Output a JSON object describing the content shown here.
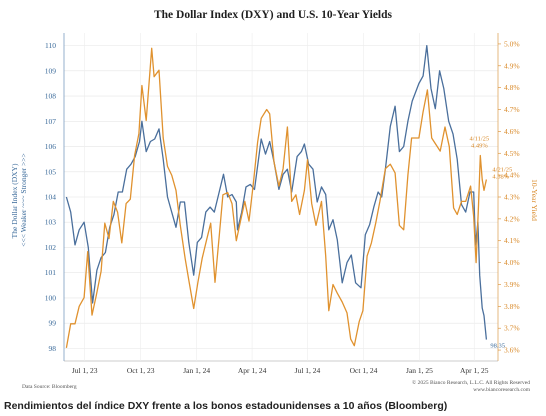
{
  "caption": "Rendimientos del índice DXY frente a los bonos estadounidenses a 10 años (Bloomberg)",
  "chart_data": {
    "type": "line",
    "title": "The Dollar Index (DXY)  and U.S. 10-Year Yields",
    "ylabel_left_line1": "The Dollar Index (DXY)",
    "ylabel_left_line2": "<<< Weaker ~~~ Stronger >>>",
    "ylabel_right": "10-Year Yield",
    "ylim_left": [
      97.5,
      110.5
    ],
    "ylim_right": [
      3.55,
      5.05
    ],
    "y_ticks_left": [
      "98",
      "99",
      "100",
      "101",
      "102",
      "103",
      "104",
      "105",
      "106",
      "107",
      "108",
      "109",
      "110"
    ],
    "y_ticks_right": [
      "3.6%",
      "3.7%",
      "3.8%",
      "3.9%",
      "4.0%",
      "4.1%",
      "4.2%",
      "4.3%",
      "4.4%",
      "4.5%",
      "4.6%",
      "4.7%",
      "4.8%",
      "4.9%",
      "5.0%"
    ],
    "x_ticks": [
      "Jul 1, 23",
      "Oct 1, 23",
      "Jan 1, 24",
      "Apr 1, 24",
      "Jul 1, 24",
      "Oct 1, 24",
      "Jan 1, 25",
      "Apr 1, 25"
    ],
    "series": [
      {
        "axis": "left",
        "color": "#4a6f9c",
        "points": [
          [
            "2023-06-01",
            104.0
          ],
          [
            "2023-06-08",
            103.4
          ],
          [
            "2023-06-15",
            102.1
          ],
          [
            "2023-06-22",
            102.7
          ],
          [
            "2023-06-30",
            103.0
          ],
          [
            "2023-07-07",
            102.0
          ],
          [
            "2023-07-14",
            99.8
          ],
          [
            "2023-07-21",
            101.1
          ],
          [
            "2023-07-28",
            101.6
          ],
          [
            "2023-08-04",
            101.8
          ],
          [
            "2023-08-11",
            102.8
          ],
          [
            "2023-08-18",
            103.3
          ],
          [
            "2023-08-25",
            104.2
          ],
          [
            "2023-09-01",
            104.2
          ],
          [
            "2023-09-08",
            105.1
          ],
          [
            "2023-09-15",
            105.3
          ],
          [
            "2023-09-22",
            105.6
          ],
          [
            "2023-09-29",
            106.2
          ],
          [
            "2023-10-03",
            107.0
          ],
          [
            "2023-10-10",
            105.8
          ],
          [
            "2023-10-17",
            106.2
          ],
          [
            "2023-10-24",
            106.3
          ],
          [
            "2023-10-31",
            106.7
          ],
          [
            "2023-11-07",
            105.5
          ],
          [
            "2023-11-14",
            104.0
          ],
          [
            "2023-11-21",
            103.4
          ],
          [
            "2023-11-28",
            102.8
          ],
          [
            "2023-12-05",
            103.8
          ],
          [
            "2023-12-12",
            103.8
          ],
          [
            "2023-12-19",
            102.2
          ],
          [
            "2023-12-27",
            100.9
          ],
          [
            "2024-01-02",
            102.2
          ],
          [
            "2024-01-09",
            102.4
          ],
          [
            "2024-01-16",
            103.4
          ],
          [
            "2024-01-23",
            103.6
          ],
          [
            "2024-01-30",
            103.4
          ],
          [
            "2024-02-06",
            104.1
          ],
          [
            "2024-02-14",
            104.9
          ],
          [
            "2024-02-21",
            104.0
          ],
          [
            "2024-02-28",
            104.1
          ],
          [
            "2024-03-06",
            103.8
          ],
          [
            "2024-03-08",
            102.7
          ],
          [
            "2024-03-15",
            103.4
          ],
          [
            "2024-03-22",
            104.4
          ],
          [
            "2024-03-29",
            104.5
          ],
          [
            "2024-04-05",
            104.3
          ],
          [
            "2024-04-16",
            106.3
          ],
          [
            "2024-04-23",
            105.7
          ],
          [
            "2024-04-30",
            106.2
          ],
          [
            "2024-05-07",
            105.4
          ],
          [
            "2024-05-15",
            104.3
          ],
          [
            "2024-05-22",
            104.9
          ],
          [
            "2024-05-29",
            105.1
          ],
          [
            "2024-06-05",
            104.2
          ],
          [
            "2024-06-14",
            105.6
          ],
          [
            "2024-06-21",
            105.8
          ],
          [
            "2024-06-26",
            106.1
          ],
          [
            "2024-07-03",
            105.3
          ],
          [
            "2024-07-10",
            105.1
          ],
          [
            "2024-07-17",
            103.8
          ],
          [
            "2024-07-24",
            104.4
          ],
          [
            "2024-07-31",
            104.1
          ],
          [
            "2024-08-05",
            102.7
          ],
          [
            "2024-08-12",
            103.1
          ],
          [
            "2024-08-19",
            102.3
          ],
          [
            "2024-08-27",
            100.6
          ],
          [
            "2024-09-04",
            101.4
          ],
          [
            "2024-09-11",
            101.7
          ],
          [
            "2024-09-18",
            100.6
          ],
          [
            "2024-09-27",
            100.4
          ],
          [
            "2024-10-04",
            102.5
          ],
          [
            "2024-10-11",
            102.9
          ],
          [
            "2024-10-18",
            103.6
          ],
          [
            "2024-10-25",
            104.2
          ],
          [
            "2024-10-31",
            104.0
          ],
          [
            "2024-11-06",
            105.1
          ],
          [
            "2024-11-14",
            106.8
          ],
          [
            "2024-11-22",
            107.6
          ],
          [
            "2024-11-29",
            105.8
          ],
          [
            "2024-12-06",
            106.0
          ],
          [
            "2024-12-13",
            107.0
          ],
          [
            "2024-12-20",
            107.8
          ],
          [
            "2024-12-31",
            108.5
          ],
          [
            "2025-01-07",
            108.8
          ],
          [
            "2025-01-13",
            110.0
          ],
          [
            "2025-01-20",
            108.3
          ],
          [
            "2025-01-27",
            107.5
          ],
          [
            "2025-02-03",
            109.0
          ],
          [
            "2025-02-10",
            108.3
          ],
          [
            "2025-02-18",
            107.0
          ],
          [
            "2025-02-25",
            106.5
          ],
          [
            "2025-03-04",
            105.5
          ],
          [
            "2025-03-11",
            103.7
          ],
          [
            "2025-03-18",
            103.4
          ],
          [
            "2025-03-25",
            104.2
          ],
          [
            "2025-03-31",
            104.2
          ],
          [
            "2025-04-03",
            102.1
          ],
          [
            "2025-04-07",
            103.0
          ],
          [
            "2025-04-10",
            100.9
          ],
          [
            "2025-04-14",
            99.6
          ],
          [
            "2025-04-17",
            99.3
          ],
          [
            "2025-04-21",
            98.35
          ]
        ]
      },
      {
        "axis": "right",
        "color": "#e0922f",
        "points": [
          [
            "2023-06-01",
            3.61
          ],
          [
            "2023-06-08",
            3.72
          ],
          [
            "2023-06-15",
            3.72
          ],
          [
            "2023-06-22",
            3.8
          ],
          [
            "2023-06-30",
            3.84
          ],
          [
            "2023-07-06",
            4.05
          ],
          [
            "2023-07-13",
            3.76
          ],
          [
            "2023-07-20",
            3.85
          ],
          [
            "2023-07-28",
            3.96
          ],
          [
            "2023-08-03",
            4.18
          ],
          [
            "2023-08-10",
            4.11
          ],
          [
            "2023-08-17",
            4.28
          ],
          [
            "2023-08-24",
            4.23
          ],
          [
            "2023-08-31",
            4.09
          ],
          [
            "2023-09-07",
            4.27
          ],
          [
            "2023-09-14",
            4.29
          ],
          [
            "2023-09-21",
            4.49
          ],
          [
            "2023-09-28",
            4.59
          ],
          [
            "2023-10-03",
            4.81
          ],
          [
            "2023-10-10",
            4.65
          ],
          [
            "2023-10-19",
            4.98
          ],
          [
            "2023-10-23",
            4.85
          ],
          [
            "2023-10-31",
            4.88
          ],
          [
            "2023-11-07",
            4.57
          ],
          [
            "2023-11-14",
            4.44
          ],
          [
            "2023-11-21",
            4.4
          ],
          [
            "2023-11-28",
            4.33
          ],
          [
            "2023-12-05",
            4.17
          ],
          [
            "2023-12-13",
            4.02
          ],
          [
            "2023-12-19",
            3.92
          ],
          [
            "2023-12-27",
            3.79
          ],
          [
            "2024-01-03",
            3.91
          ],
          [
            "2024-01-10",
            4.02
          ],
          [
            "2024-01-17",
            4.1
          ],
          [
            "2024-01-24",
            4.18
          ],
          [
            "2024-01-31",
            3.91
          ],
          [
            "2024-02-07",
            4.12
          ],
          [
            "2024-02-13",
            4.31
          ],
          [
            "2024-02-21",
            4.32
          ],
          [
            "2024-02-28",
            4.27
          ],
          [
            "2024-03-06",
            4.1
          ],
          [
            "2024-03-13",
            4.19
          ],
          [
            "2024-03-20",
            4.28
          ],
          [
            "2024-03-27",
            4.19
          ],
          [
            "2024-04-03",
            4.36
          ],
          [
            "2024-04-10",
            4.55
          ],
          [
            "2024-04-16",
            4.66
          ],
          [
            "2024-04-25",
            4.7
          ],
          [
            "2024-04-30",
            4.68
          ],
          [
            "2024-05-07",
            4.46
          ],
          [
            "2024-05-15",
            4.35
          ],
          [
            "2024-05-22",
            4.43
          ],
          [
            "2024-05-29",
            4.62
          ],
          [
            "2024-06-05",
            4.28
          ],
          [
            "2024-06-12",
            4.31
          ],
          [
            "2024-06-18",
            4.22
          ],
          [
            "2024-06-26",
            4.33
          ],
          [
            "2024-07-01",
            4.47
          ],
          [
            "2024-07-08",
            4.27
          ],
          [
            "2024-07-15",
            4.17
          ],
          [
            "2024-07-24",
            4.28
          ],
          [
            "2024-07-31",
            4.03
          ],
          [
            "2024-08-05",
            3.78
          ],
          [
            "2024-08-12",
            3.9
          ],
          [
            "2024-08-19",
            3.86
          ],
          [
            "2024-08-27",
            3.82
          ],
          [
            "2024-09-04",
            3.77
          ],
          [
            "2024-09-10",
            3.65
          ],
          [
            "2024-09-16",
            3.62
          ],
          [
            "2024-09-24",
            3.73
          ],
          [
            "2024-09-30",
            3.78
          ],
          [
            "2024-10-07",
            4.03
          ],
          [
            "2024-10-14",
            4.09
          ],
          [
            "2024-10-21",
            4.18
          ],
          [
            "2024-10-28",
            4.28
          ],
          [
            "2024-11-06",
            4.43
          ],
          [
            "2024-11-14",
            4.45
          ],
          [
            "2024-11-22",
            4.41
          ],
          [
            "2024-11-29",
            4.17
          ],
          [
            "2024-12-06",
            4.15
          ],
          [
            "2024-12-13",
            4.4
          ],
          [
            "2024-12-19",
            4.57
          ],
          [
            "2024-12-31",
            4.57
          ],
          [
            "2025-01-07",
            4.69
          ],
          [
            "2025-01-14",
            4.79
          ],
          [
            "2025-01-21",
            4.57
          ],
          [
            "2025-01-28",
            4.54
          ],
          [
            "2025-02-04",
            4.51
          ],
          [
            "2025-02-12",
            4.62
          ],
          [
            "2025-02-19",
            4.53
          ],
          [
            "2025-02-26",
            4.25
          ],
          [
            "2025-03-04",
            4.22
          ],
          [
            "2025-03-11",
            4.28
          ],
          [
            "2025-03-18",
            4.28
          ],
          [
            "2025-03-26",
            4.35
          ],
          [
            "2025-03-31",
            4.21
          ],
          [
            "2025-04-04",
            4.0
          ],
          [
            "2025-04-08",
            4.26
          ],
          [
            "2025-04-11",
            4.49
          ],
          [
            "2025-04-14",
            4.38
          ],
          [
            "2025-04-17",
            4.33
          ],
          [
            "2025-04-21",
            4.38
          ]
        ]
      }
    ],
    "annotations": [
      {
        "date_line": "4/11/25",
        "value": "4.49%",
        "at": [
          "2025-04-11",
          4.49
        ],
        "axis": "right"
      },
      {
        "date_line": "4/21/25",
        "value": "4.38%",
        "at": [
          "2025-04-21",
          4.38
        ],
        "axis": "right"
      },
      {
        "value": "98.35",
        "at": [
          "2025-04-21",
          98.35
        ],
        "axis": "left"
      }
    ],
    "source": "Data Source: Bloomberg",
    "copyright": "© 2025 Bianco Research, L.L.C. All Rights Reserved",
    "website": "www.biancoresearch.com"
  }
}
